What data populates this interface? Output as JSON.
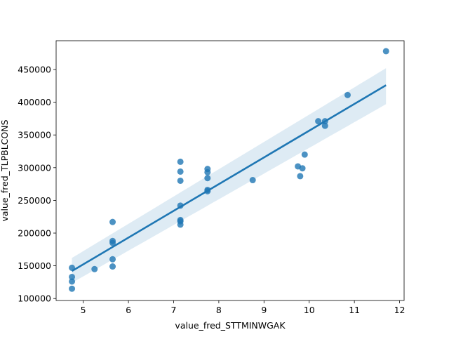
{
  "chart_data": {
    "type": "scatter",
    "title": "",
    "xlabel": "value_fred_STTMINWGAK",
    "ylabel": "value_fred_TLPBLCONS",
    "xlim": [
      4.4,
      12.1
    ],
    "ylim": [
      97000,
      494000
    ],
    "x_ticks": [
      5,
      6,
      7,
      8,
      9,
      10,
      11,
      12
    ],
    "y_ticks": [
      100000,
      150000,
      200000,
      250000,
      300000,
      350000,
      400000,
      450000
    ],
    "grid": false,
    "legend": "none",
    "colors": {
      "points": "#1f77b4",
      "line": "#1f77b4",
      "band": "#1f77b4"
    },
    "points": [
      {
        "x": 4.75,
        "y": 147000
      },
      {
        "x": 4.75,
        "y": 133000
      },
      {
        "x": 4.75,
        "y": 126000
      },
      {
        "x": 4.75,
        "y": 115000
      },
      {
        "x": 5.25,
        "y": 145000
      },
      {
        "x": 5.65,
        "y": 217000
      },
      {
        "x": 5.65,
        "y": 188000
      },
      {
        "x": 5.65,
        "y": 185000
      },
      {
        "x": 5.65,
        "y": 160000
      },
      {
        "x": 5.65,
        "y": 149000
      },
      {
        "x": 7.15,
        "y": 309000
      },
      {
        "x": 7.15,
        "y": 294000
      },
      {
        "x": 7.15,
        "y": 280000
      },
      {
        "x": 7.15,
        "y": 242000
      },
      {
        "x": 7.15,
        "y": 220000
      },
      {
        "x": 7.15,
        "y": 218000
      },
      {
        "x": 7.15,
        "y": 213000
      },
      {
        "x": 7.75,
        "y": 298000
      },
      {
        "x": 7.75,
        "y": 293000
      },
      {
        "x": 7.75,
        "y": 284000
      },
      {
        "x": 7.75,
        "y": 266000
      },
      {
        "x": 7.75,
        "y": 264000
      },
      {
        "x": 8.75,
        "y": 281000
      },
      {
        "x": 9.75,
        "y": 302000
      },
      {
        "x": 9.8,
        "y": 287000
      },
      {
        "x": 9.85,
        "y": 299000
      },
      {
        "x": 9.9,
        "y": 320000
      },
      {
        "x": 10.2,
        "y": 371000
      },
      {
        "x": 10.35,
        "y": 371000
      },
      {
        "x": 10.35,
        "y": 364000
      },
      {
        "x": 10.85,
        "y": 411000
      },
      {
        "x": 11.7,
        "y": 478000
      }
    ],
    "regression": {
      "x": [
        4.75,
        11.7
      ],
      "y": [
        142000,
        426000
      ],
      "ci_upper": [
        162000,
        452000
      ],
      "ci_lower": [
        124000,
        397000
      ]
    }
  }
}
